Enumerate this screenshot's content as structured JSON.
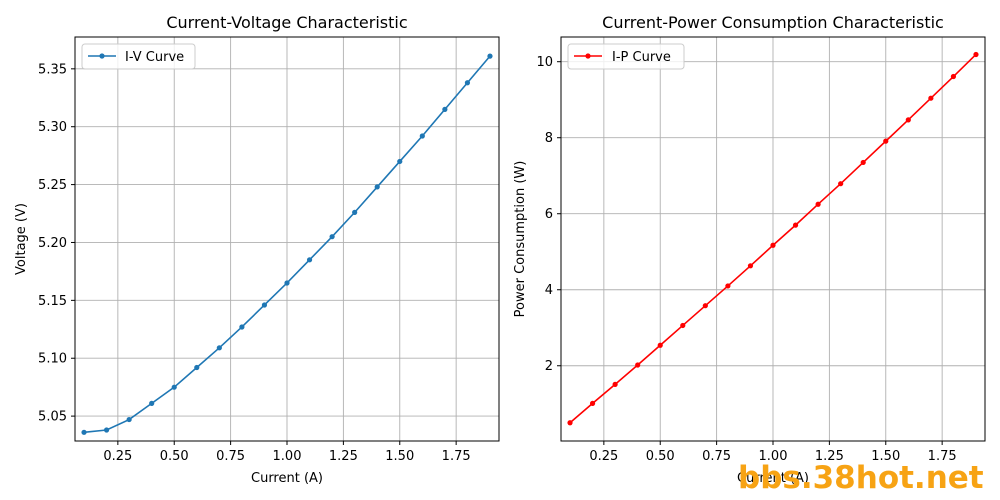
{
  "chart_data": [
    {
      "type": "line",
      "title": "Current-Voltage Characteristic",
      "xlabel": "Current (A)",
      "ylabel": "Voltage (V)",
      "xlim": [
        0.06,
        1.94
      ],
      "ylim": [
        5.0285,
        5.3775
      ],
      "xticks": [
        0.25,
        0.5,
        0.75,
        1.0,
        1.25,
        1.5,
        1.75
      ],
      "xtick_labels": [
        "0.25",
        "0.50",
        "0.75",
        "1.00",
        "1.25",
        "1.50",
        "1.75"
      ],
      "yticks": [
        5.05,
        5.1,
        5.15,
        5.2,
        5.25,
        5.3,
        5.35
      ],
      "ytick_labels": [
        "5.05",
        "5.10",
        "5.15",
        "5.20",
        "5.25",
        "5.30",
        "5.35"
      ],
      "grid": true,
      "legend_placement": "top-left",
      "series": [
        {
          "name": "I-V Curve",
          "color": "#1f77b4",
          "marker": "circle",
          "x": [
            0.1,
            0.2,
            0.3,
            0.4,
            0.5,
            0.6,
            0.7,
            0.8,
            0.9,
            1.0,
            1.1,
            1.2,
            1.3,
            1.4,
            1.5,
            1.6,
            1.7,
            1.8,
            1.9
          ],
          "y": [
            5.036,
            5.038,
            5.047,
            5.061,
            5.075,
            5.092,
            5.109,
            5.127,
            5.146,
            5.165,
            5.185,
            5.205,
            5.226,
            5.248,
            5.27,
            5.292,
            5.315,
            5.338,
            5.361
          ]
        }
      ]
    },
    {
      "type": "line",
      "title": "Current-Power Consumption Characteristic",
      "xlabel": "Current (A)",
      "ylabel": "Power Consumption (W)",
      "xlim": [
        0.06,
        1.94
      ],
      "ylim": [
        0.02,
        10.65
      ],
      "xticks": [
        0.25,
        0.5,
        0.75,
        1.0,
        1.25,
        1.5,
        1.75
      ],
      "xtick_labels": [
        "0.25",
        "0.50",
        "0.75",
        "1.00",
        "1.25",
        "1.50",
        "1.75"
      ],
      "yticks": [
        2,
        4,
        6,
        8,
        10
      ],
      "ytick_labels": [
        "2",
        "4",
        "6",
        "8",
        "10"
      ],
      "grid": true,
      "legend_placement": "top-left",
      "series": [
        {
          "name": "I-P Curve",
          "color": "#ff0000",
          "marker": "circle",
          "x": [
            0.1,
            0.2,
            0.3,
            0.4,
            0.5,
            0.6,
            0.7,
            0.8,
            0.9,
            1.0,
            1.1,
            1.2,
            1.3,
            1.4,
            1.5,
            1.6,
            1.7,
            1.8,
            1.9
          ],
          "y": [
            0.5,
            1.01,
            1.51,
            2.02,
            2.54,
            3.06,
            3.58,
            4.1,
            4.63,
            5.17,
            5.7,
            6.25,
            6.79,
            7.35,
            7.91,
            8.47,
            9.04,
            9.61,
            10.19
          ]
        }
      ]
    }
  ],
  "watermark": {
    "text": "bbs.38hot.net",
    "color": "#f7a314"
  }
}
